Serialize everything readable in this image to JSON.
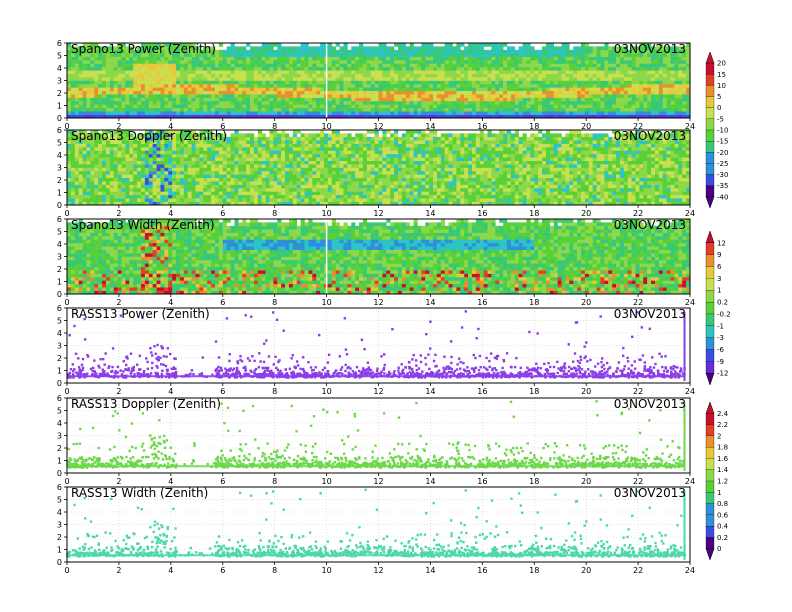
{
  "date_label": "03NOV2013",
  "colors": {
    "power_palette": [
      "#4b0082",
      "#6a2bd8",
      "#3a4fe0",
      "#2f8fd8",
      "#2cc4c4",
      "#38c878",
      "#58d038",
      "#8cd84a",
      "#c8e050",
      "#e8c838",
      "#e89030",
      "#e04028",
      "#c8102e"
    ],
    "doppler_palette": [
      "#4b0082",
      "#6a2bd8",
      "#3a4fe0",
      "#2f8fd8",
      "#2cc4c4",
      "#38c878",
      "#58d038",
      "#8cd84a",
      "#c8e050",
      "#e8c838",
      "#e89030",
      "#e04028",
      "#c8102e"
    ],
    "width_palette": [
      "#4b0082",
      "#6a2bd8",
      "#3a4fe0",
      "#2f8fd8",
      "#2cc4c4",
      "#38c878",
      "#58d038",
      "#8cd84a",
      "#c8e050",
      "#e8c838",
      "#e89030",
      "#e04028",
      "#c8102e"
    ],
    "rass_power_color": "#8c3ce8",
    "rass_doppler_color": "#6cd84a",
    "rass_width_color": "#4cd8a8"
  },
  "chart_data": [
    {
      "type": "heatmap",
      "title": "Spano13 Power (Zenith)",
      "date": "03NOV2013",
      "xlim": [
        0,
        24
      ],
      "ylim": [
        0,
        6
      ],
      "xticks": [
        "0",
        "2",
        "4",
        "6",
        "8",
        "10",
        "12",
        "14",
        "16",
        "18",
        "20",
        "22",
        "24"
      ],
      "yticks": [
        "0",
        "1",
        "2",
        "3",
        "4",
        "5",
        "6"
      ],
      "colorbar": [
        "20",
        "15",
        "10",
        "5",
        "0",
        "-5",
        "-10",
        "-15",
        "-20",
        "-25",
        "-30",
        "-35",
        "-40"
      ]
    },
    {
      "type": "heatmap",
      "title": "Spano13 Doppler (Zenith)",
      "date": "03NOV2013",
      "xlim": [
        0,
        24
      ],
      "ylim": [
        0,
        6
      ],
      "xticks": [
        "0",
        "2",
        "4",
        "6",
        "8",
        "10",
        "12",
        "14",
        "16",
        "18",
        "20",
        "22",
        "24"
      ],
      "yticks": [
        "0",
        "1",
        "2",
        "3",
        "4",
        "5",
        "6"
      ]
    },
    {
      "type": "heatmap",
      "title": "Spano13 Width (Zenith)",
      "date": "03NOV2013",
      "xlim": [
        0,
        24
      ],
      "ylim": [
        0,
        6
      ],
      "xticks": [
        "0",
        "2",
        "4",
        "6",
        "8",
        "10",
        "12",
        "14",
        "16",
        "18",
        "20",
        "22",
        "24"
      ],
      "yticks": [
        "0",
        "1",
        "2",
        "3",
        "4",
        "5",
        "6"
      ],
      "colorbar": [
        "12",
        "9",
        "6",
        "3",
        "1",
        "0.2",
        "-0.2",
        "-1",
        "-3",
        "-6",
        "-9",
        "-12"
      ]
    },
    {
      "type": "scatter",
      "title": "RASS13 Power (Zenith)",
      "date": "03NOV2013",
      "xlim": [
        0,
        24
      ],
      "ylim": [
        0,
        6
      ],
      "xticks": [
        "0",
        "2",
        "4",
        "6",
        "8",
        "10",
        "12",
        "14",
        "16",
        "18",
        "20",
        "22",
        "24"
      ],
      "yticks": [
        "0",
        "1",
        "2",
        "3",
        "4",
        "5",
        "6"
      ]
    },
    {
      "type": "scatter",
      "title": "RASS13 Doppler (Zenith)",
      "date": "03NOV2013",
      "xlim": [
        0,
        24
      ],
      "ylim": [
        0,
        6
      ],
      "xticks": [
        "0",
        "2",
        "4",
        "6",
        "8",
        "10",
        "12",
        "14",
        "16",
        "18",
        "20",
        "22",
        "24"
      ],
      "yticks": [
        "0",
        "1",
        "2",
        "3",
        "4",
        "5",
        "6"
      ],
      "colorbar": [
        "2.4",
        "2.2",
        "2",
        "1.8",
        "1.6",
        "1.4",
        "1.2",
        "1",
        "0.8",
        "0.6",
        "0.4",
        "0.2",
        "0"
      ]
    },
    {
      "type": "scatter",
      "title": "RASS13 Width (Zenith)",
      "date": "03NOV2013",
      "xlim": [
        0,
        24
      ],
      "ylim": [
        0,
        6
      ],
      "xticks": [
        "0",
        "2",
        "4",
        "6",
        "8",
        "10",
        "12",
        "14",
        "16",
        "18",
        "20",
        "22",
        "24"
      ],
      "yticks": [
        "0",
        "1",
        "2",
        "3",
        "4",
        "5",
        "6"
      ]
    }
  ]
}
